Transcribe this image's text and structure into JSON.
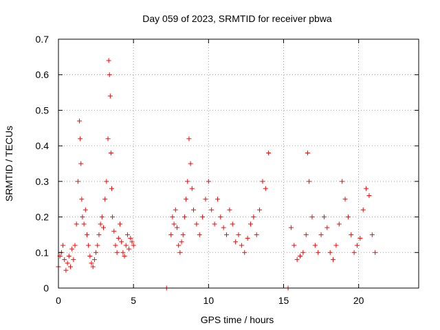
{
  "chart_data": {
    "type": "scatter",
    "title": "Day 059 of 2023, SRMTID for receiver pbwa",
    "xlabel": "GPS time / hours",
    "ylabel": "SRMTID / TECUs",
    "xlim": [
      0,
      24
    ],
    "ylim": [
      0,
      0.7
    ],
    "xticks": [
      0,
      5,
      10,
      15,
      20
    ],
    "xtick_labels": [
      "0",
      "5",
      "10",
      "15",
      "20"
    ],
    "yticks": [
      0,
      0.1,
      0.2,
      0.3,
      0.4,
      0.5,
      0.6,
      0.7
    ],
    "ytick_labels": [
      "0",
      "0.1",
      "0.2",
      "0.3",
      "0.4",
      "0.5",
      "0.6",
      "0.7"
    ],
    "grid": true,
    "marker": "plus",
    "color": "#ff0000",
    "series": [
      {
        "name": "SRMTID",
        "x": [
          0.0,
          0.1,
          0.2,
          0.3,
          0.4,
          0.5,
          0.6,
          0.7,
          0.8,
          0.9,
          1.0,
          1.1,
          1.2,
          1.3,
          1.4,
          1.45,
          1.5,
          1.55,
          1.6,
          1.7,
          1.8,
          1.9,
          2.0,
          2.1,
          2.2,
          2.3,
          2.4,
          2.5,
          2.6,
          2.7,
          2.8,
          2.9,
          3.0,
          3.1,
          3.2,
          3.3,
          3.35,
          3.4,
          3.45,
          3.5,
          3.55,
          3.6,
          3.7,
          3.8,
          3.9,
          4.0,
          4.1,
          4.2,
          4.3,
          4.4,
          4.5,
          4.6,
          4.7,
          4.8,
          4.9,
          5.0,
          7.2,
          7.5,
          7.6,
          7.7,
          7.8,
          7.9,
          8.0,
          8.1,
          8.2,
          8.3,
          8.4,
          8.5,
          8.6,
          8.7,
          8.8,
          8.9,
          9.0,
          9.2,
          9.4,
          9.6,
          9.8,
          10.0,
          10.2,
          10.4,
          10.6,
          10.8,
          11.0,
          11.2,
          11.4,
          11.6,
          11.8,
          12.0,
          12.2,
          12.4,
          12.6,
          12.8,
          13.0,
          13.2,
          13.4,
          13.6,
          13.8,
          14.0,
          15.3,
          15.5,
          15.7,
          15.9,
          16.1,
          16.3,
          16.5,
          16.6,
          16.7,
          16.9,
          17.1,
          17.3,
          17.5,
          17.7,
          17.9,
          18.1,
          18.3,
          18.5,
          18.7,
          18.9,
          19.1,
          19.3,
          19.5,
          19.7,
          19.9,
          20.1,
          20.3,
          20.5,
          20.7,
          20.9,
          21.1
        ],
        "y": [
          0.06,
          0.09,
          0.1,
          0.12,
          0.08,
          0.05,
          0.07,
          0.09,
          0.06,
          0.11,
          0.08,
          0.12,
          0.18,
          0.3,
          0.47,
          0.42,
          0.35,
          0.25,
          0.2,
          0.18,
          0.22,
          0.15,
          0.12,
          0.09,
          0.07,
          0.06,
          0.08,
          0.1,
          0.12,
          0.15,
          0.18,
          0.2,
          0.17,
          0.25,
          0.3,
          0.42,
          0.64,
          0.6,
          0.54,
          0.38,
          0.28,
          0.2,
          0.16,
          0.12,
          0.1,
          0.14,
          0.18,
          0.13,
          0.1,
          0.09,
          0.12,
          0.15,
          0.11,
          0.14,
          0.13,
          0.12,
          0.0,
          0.15,
          0.2,
          0.18,
          0.22,
          0.17,
          0.12,
          0.1,
          0.13,
          0.15,
          0.2,
          0.25,
          0.3,
          0.42,
          0.35,
          0.28,
          0.22,
          0.18,
          0.15,
          0.2,
          0.25,
          0.3,
          0.22,
          0.18,
          0.25,
          0.2,
          0.17,
          0.15,
          0.22,
          0.18,
          0.13,
          0.15,
          0.12,
          0.1,
          0.14,
          0.18,
          0.2,
          0.15,
          0.22,
          0.3,
          0.28,
          0.38,
          0.0,
          0.17,
          0.12,
          0.08,
          0.09,
          0.1,
          0.15,
          0.38,
          0.3,
          0.2,
          0.12,
          0.1,
          0.15,
          0.2,
          0.17,
          0.1,
          0.08,
          0.12,
          0.18,
          0.3,
          0.25,
          0.2,
          0.15,
          0.1,
          0.12,
          0.14,
          0.22,
          0.28,
          0.26,
          0.15,
          0.1
        ]
      }
    ]
  }
}
